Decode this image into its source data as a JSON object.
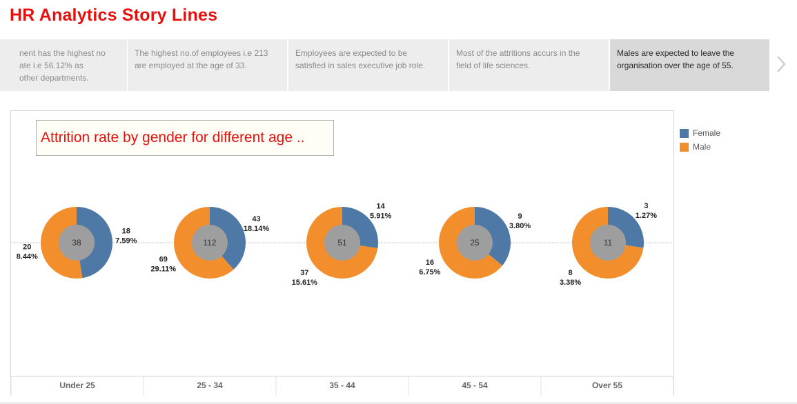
{
  "story": {
    "title": "HR Analytics Story Lines",
    "points": [
      {
        "text": "...ment has the highest no ...ate i.e 56.12% as ...other departments.",
        "lines": [
          "nent has the highest no",
          "ate i.e 56.12% as",
          "other departments."
        ],
        "active": false
      },
      {
        "text": "The highest no.of employees i.e 213 are employed at the age of 33.",
        "lines": [
          "The highest no.of employees i.e 213",
          "are employed at the age of 33."
        ],
        "active": false
      },
      {
        "text": "Employees are expected to be satisfied in sales executive job role.",
        "lines": [
          "Employees are expected to be",
          "satisfied in sales executive job role."
        ],
        "active": false
      },
      {
        "text": "Most of the attritions accurs in the field of life sciences.",
        "lines": [
          "Most of the attritions accurs in the",
          "field of life sciences."
        ],
        "active": false
      },
      {
        "text": "Males are expected to leave the organisation over the age of 55.",
        "lines": [
          "Males are expected to leave the",
          "organisation over the age of 55."
        ],
        "active": true
      }
    ]
  },
  "chart_caption": "Attrition rate by gender for different age ..",
  "legend": {
    "items": [
      {
        "label": "Female",
        "color": "#4e79a7"
      },
      {
        "label": "Male",
        "color": "#f28e2b"
      }
    ]
  },
  "chart_data": {
    "type": "pie",
    "title": "Attrition rate by gender for different age ..",
    "categories": [
      "Under 25",
      "25 - 34",
      "35 - 44",
      "45 - 54",
      "Over 55"
    ],
    "totals": [
      38,
      112,
      51,
      25,
      11
    ],
    "series": [
      {
        "name": "Female",
        "color": "#4e79a7",
        "values": [
          18,
          43,
          14,
          9,
          3
        ],
        "percent_labels": [
          "7.59%",
          "18.14%",
          "5.91%",
          "3.80%",
          "1.27%"
        ]
      },
      {
        "name": "Male",
        "color": "#f28e2b",
        "values": [
          20,
          69,
          37,
          16,
          8
        ],
        "percent_labels": [
          "8.44%",
          "29.11%",
          "15.61%",
          "6.75%",
          "3.38%"
        ]
      }
    ],
    "center_color": "#9e9e9e",
    "legend_position": "right"
  }
}
